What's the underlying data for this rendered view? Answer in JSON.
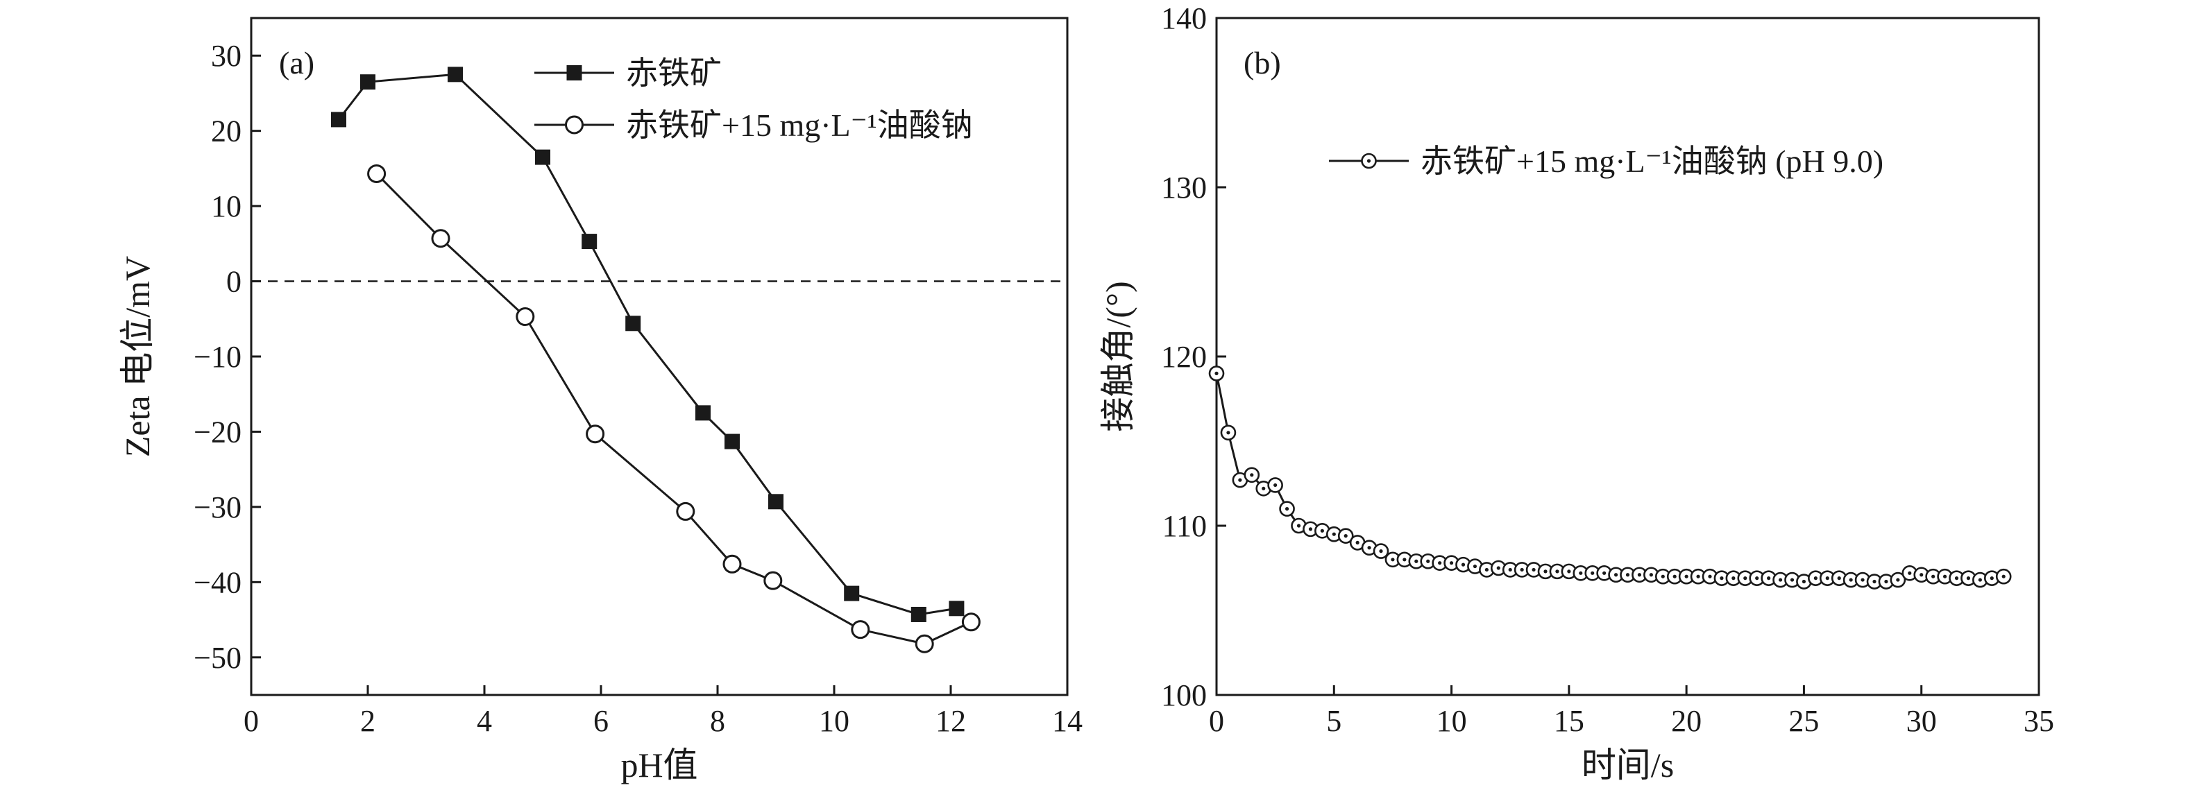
{
  "chart_data": [
    {
      "type": "line",
      "panel_label": "(a)",
      "xlabel": "pH值",
      "ylabel": "Zeta 电位/mV",
      "xlim": [
        0,
        14
      ],
      "ylim": [
        -55,
        35
      ],
      "xticks": [
        0,
        2,
        4,
        6,
        8,
        10,
        12,
        14
      ],
      "yticks": [
        -50,
        -40,
        -30,
        -20,
        -10,
        0,
        10,
        20,
        30
      ],
      "xtick_labels": [
        "0",
        "2",
        "4",
        "6",
        "8",
        "10",
        "12",
        "14"
      ],
      "ytick_labels": [
        "−50",
        "−40",
        "−30",
        "−20",
        "−10",
        "0",
        "10",
        "20",
        "30"
      ],
      "reference_line": {
        "y": 0,
        "style": "dashed"
      },
      "legend_position": "top-right",
      "series": [
        {
          "name": "赤铁矿",
          "marker": "square-filled",
          "x": [
            1.5,
            2.0,
            3.5,
            5.0,
            5.8,
            6.55,
            7.75,
            8.25,
            9.0,
            10.3,
            11.45,
            12.1
          ],
          "y": [
            21.5,
            26.5,
            27.5,
            16.5,
            5.3,
            -5.6,
            -17.5,
            -21.3,
            -29.3,
            -41.5,
            -44.3,
            -43.5
          ]
        },
        {
          "name": "赤铁矿+15 mg·L⁻¹油酸钠",
          "marker": "circle-open",
          "x": [
            2.15,
            3.25,
            4.7,
            5.9,
            7.45,
            8.25,
            8.95,
            10.45,
            11.55,
            12.35
          ],
          "y": [
            14.3,
            5.7,
            -4.7,
            -20.3,
            -30.6,
            -37.6,
            -39.8,
            -46.3,
            -48.2,
            -45.3
          ]
        }
      ]
    },
    {
      "type": "line",
      "panel_label": "(b)",
      "xlabel": "时间/s",
      "ylabel": "接触角/(°)",
      "xlim": [
        0,
        35
      ],
      "ylim": [
        100,
        140
      ],
      "xticks": [
        0,
        5,
        10,
        15,
        20,
        25,
        30,
        35
      ],
      "yticks": [
        100,
        110,
        120,
        130,
        140
      ],
      "xtick_labels": [
        "0",
        "5",
        "10",
        "15",
        "20",
        "25",
        "30",
        "35"
      ],
      "ytick_labels": [
        "100",
        "110",
        "120",
        "130",
        "140"
      ],
      "legend_position": "top-right",
      "series": [
        {
          "name": "赤铁矿+15 mg·L⁻¹油酸钠 (pH 9.0)",
          "marker": "circle-open-dot",
          "x": [
            0,
            0.5,
            1,
            1.5,
            2,
            2.5,
            3,
            3.5,
            4,
            4.5,
            5,
            5.5,
            6,
            6.5,
            7,
            7.5,
            8,
            8.5,
            9,
            9.5,
            10,
            10.5,
            11,
            11.5,
            12,
            12.5,
            13,
            13.5,
            14,
            14.5,
            15,
            15.5,
            16,
            16.5,
            17,
            17.5,
            18,
            18.5,
            19,
            19.5,
            20,
            20.5,
            21,
            21.5,
            22,
            22.5,
            23,
            23.5,
            24,
            24.5,
            25,
            25.5,
            26,
            26.5,
            27,
            27.5,
            28,
            28.5,
            29,
            29.5,
            30,
            30.5,
            31,
            31.5,
            32,
            32.5,
            33,
            33.5
          ],
          "y": [
            119.0,
            115.5,
            112.7,
            113.0,
            112.2,
            112.4,
            111.0,
            110.0,
            109.8,
            109.7,
            109.5,
            109.4,
            109.0,
            108.7,
            108.5,
            108.0,
            108.0,
            107.9,
            107.9,
            107.8,
            107.8,
            107.7,
            107.6,
            107.4,
            107.5,
            107.4,
            107.4,
            107.4,
            107.3,
            107.3,
            107.3,
            107.2,
            107.2,
            107.2,
            107.1,
            107.1,
            107.1,
            107.1,
            107.0,
            107.0,
            107.0,
            107.0,
            107.0,
            106.9,
            106.9,
            106.9,
            106.9,
            106.9,
            106.8,
            106.8,
            106.7,
            106.9,
            106.9,
            106.9,
            106.8,
            106.8,
            106.7,
            106.7,
            106.8,
            107.2,
            107.1,
            107.0,
            107.0,
            106.9,
            106.9,
            106.8,
            106.9,
            107.0
          ]
        }
      ]
    }
  ]
}
